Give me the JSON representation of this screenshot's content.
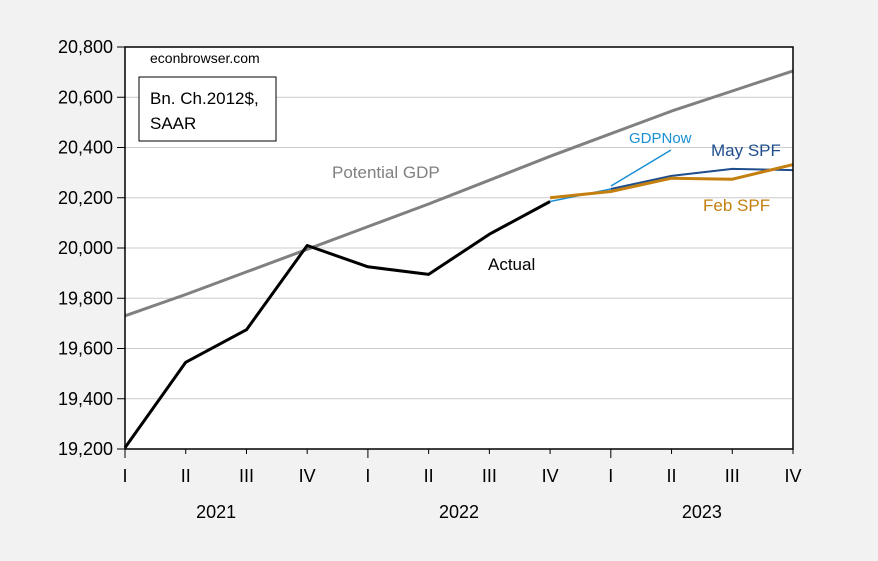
{
  "chart_data": {
    "type": "line",
    "title": "",
    "source_note": "econbrowser.com",
    "units_note": [
      "Bn. Ch.2012$,",
      "SAAR"
    ],
    "xlabel": "",
    "ylabel": "",
    "ylim": [
      19200,
      20800
    ],
    "yticks": [
      19200,
      19400,
      19600,
      19800,
      20000,
      20200,
      20400,
      20600,
      20800
    ],
    "ytick_labels": [
      "19,200",
      "19,400",
      "19,600",
      "19,800",
      "20,000",
      "20,200",
      "20,400",
      "20,600",
      "20,800"
    ],
    "grid": true,
    "x": [
      "2021Q1",
      "2021Q2",
      "2021Q3",
      "2021Q4",
      "2022Q1",
      "2022Q2",
      "2022Q3",
      "2022Q4",
      "2023Q1",
      "2023Q2",
      "2023Q3",
      "2023Q4"
    ],
    "xtick_labels": [
      "I",
      "II",
      "III",
      "IV",
      "I",
      "II",
      "III",
      "IV",
      "I",
      "II",
      "III",
      "IV"
    ],
    "year_labels": [
      {
        "label": "2021",
        "center_index": 2
      },
      {
        "label": "2022",
        "center_index": 6
      },
      {
        "label": "2023",
        "center_index": 10
      }
    ],
    "series": [
      {
        "name": "Potential GDP",
        "label": "Potential GDP",
        "color": "#808080",
        "values": [
          19730,
          19815,
          19905,
          19995,
          20085,
          20175,
          20270,
          20365,
          20455,
          20545,
          20625,
          20705
        ]
      },
      {
        "name": "Actual",
        "label": "Actual",
        "color": "#000000",
        "values": [
          19205,
          19545,
          19675,
          20010,
          19925,
          19895,
          20055,
          20185,
          null,
          null,
          null,
          null
        ]
      },
      {
        "name": "GDPNow",
        "label": "GDPNow",
        "color": "#1a8fd4",
        "values": [
          null,
          null,
          null,
          null,
          null,
          null,
          null,
          20185,
          20235,
          null,
          null,
          null
        ]
      },
      {
        "name": "May SPF",
        "label": "May SPF",
        "color": "#1f4e8c",
        "values": [
          null,
          null,
          null,
          null,
          null,
          null,
          null,
          null,
          20235,
          20287,
          20315,
          20310
        ]
      },
      {
        "name": "Feb SPF",
        "label": "Feb SPF",
        "color": "#c47f0f",
        "values": [
          null,
          null,
          null,
          null,
          null,
          null,
          null,
          20200,
          20225,
          20278,
          20274,
          20332
        ]
      }
    ]
  }
}
